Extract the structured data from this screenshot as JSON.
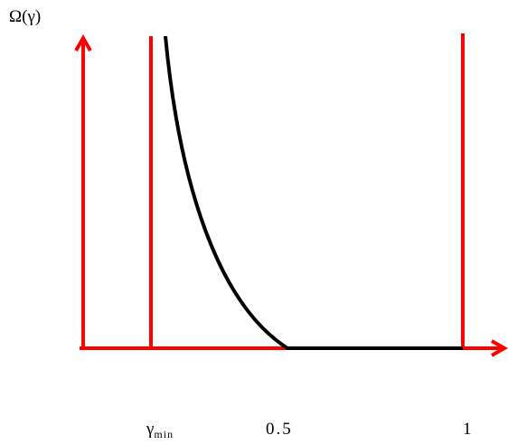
{
  "axis_label": "Ω(γ)",
  "tick_labels": [
    {
      "symbol": "γ",
      "subscript": "min"
    },
    "0.5",
    "1"
  ]
}
